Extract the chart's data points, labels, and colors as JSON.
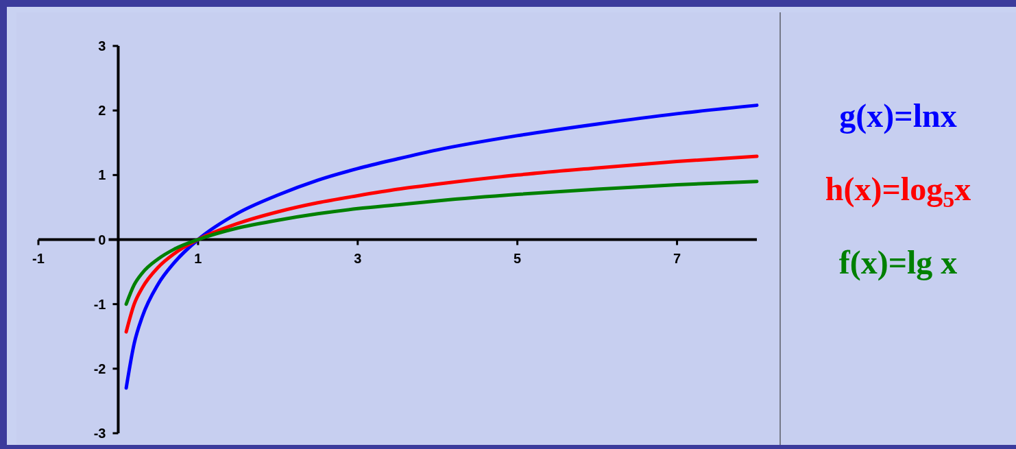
{
  "chart_data": {
    "type": "line",
    "x": [
      0.1,
      0.2,
      0.3,
      0.5,
      0.7,
      1,
      1.5,
      2,
      2.5,
      3,
      3.5,
      4,
      5,
      6,
      7,
      8
    ],
    "series": [
      {
        "name": "g(x)=lnx",
        "color": "#0000ff",
        "values": [
          -2.3,
          -1.61,
          -1.2,
          -0.69,
          -0.36,
          0,
          0.41,
          0.69,
          0.92,
          1.1,
          1.25,
          1.39,
          1.61,
          1.79,
          1.95,
          2.08
        ]
      },
      {
        "name": "h(x)=log$_{5}$x",
        "color": "#ff0000",
        "values": [
          -1.43,
          -1.0,
          -0.75,
          -0.43,
          -0.22,
          0,
          0.25,
          0.43,
          0.57,
          0.68,
          0.78,
          0.86,
          1.0,
          1.11,
          1.21,
          1.29
        ]
      },
      {
        "name": "f(x)=lg x",
        "color": "#008000",
        "values": [
          -1.0,
          -0.7,
          -0.52,
          -0.3,
          -0.15,
          0,
          0.18,
          0.3,
          0.4,
          0.48,
          0.54,
          0.6,
          0.7,
          0.78,
          0.85,
          0.9
        ]
      }
    ],
    "xlim": [
      -1,
      8
    ],
    "xticks": [
      -1,
      1,
      3,
      5,
      7
    ],
    "ylim": [
      -3,
      3
    ],
    "yticks": [
      -3,
      -2,
      -1,
      0,
      1,
      2,
      3
    ],
    "grid": false,
    "legend": "right",
    "marker": "none",
    "line_style": "solid"
  }
}
